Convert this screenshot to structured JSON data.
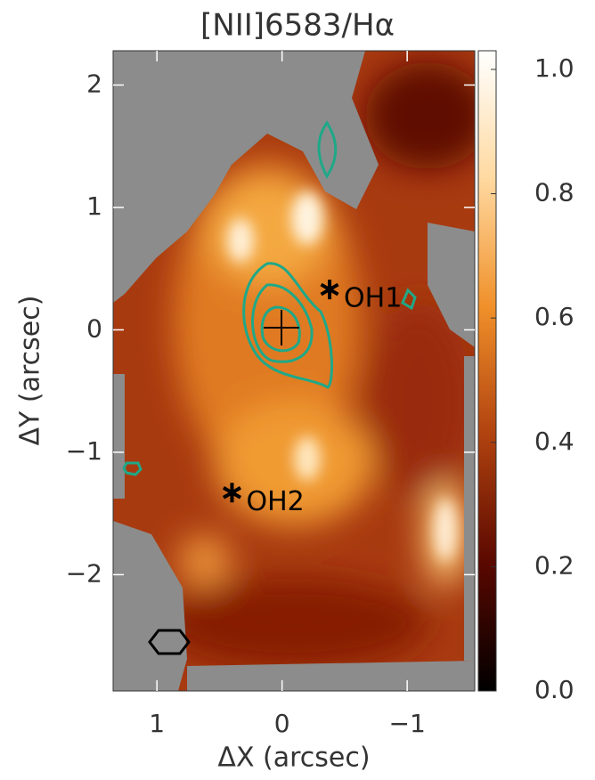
{
  "chart_data": {
    "type": "heatmap",
    "title": "[NII]6583/Hα",
    "xlabel": "ΔX (arcsec)",
    "ylabel": "ΔY (arcsec)",
    "xlim": [
      1.35,
      -1.54
    ],
    "ylim": [
      -2.95,
      2.28
    ],
    "xticks": [
      1,
      0,
      {
        "value": -1,
        "label": "−1"
      }
    ],
    "yticks": [
      {
        "value": -2,
        "label": "−2"
      },
      {
        "value": -1,
        "label": "−1"
      },
      0,
      1,
      2
    ],
    "colorbar": {
      "lim": [
        0,
        1.03
      ],
      "ticks": [
        {
          "value": 0,
          "label": "0.0"
        },
        0.2,
        0.4,
        0.6,
        0.8,
        {
          "value": 1,
          "label": "1.0"
        }
      ],
      "colors": [
        "#000000",
        "#5a0800",
        "#b0420f",
        "#f0902a",
        "#ffd9a0",
        "#ffffff"
      ]
    },
    "annotations": [
      {
        "text": "OH1",
        "x": -0.38,
        "y": 0.33
      },
      {
        "text": "OH2",
        "x": 0.4,
        "y": -1.33
      }
    ]
  }
}
